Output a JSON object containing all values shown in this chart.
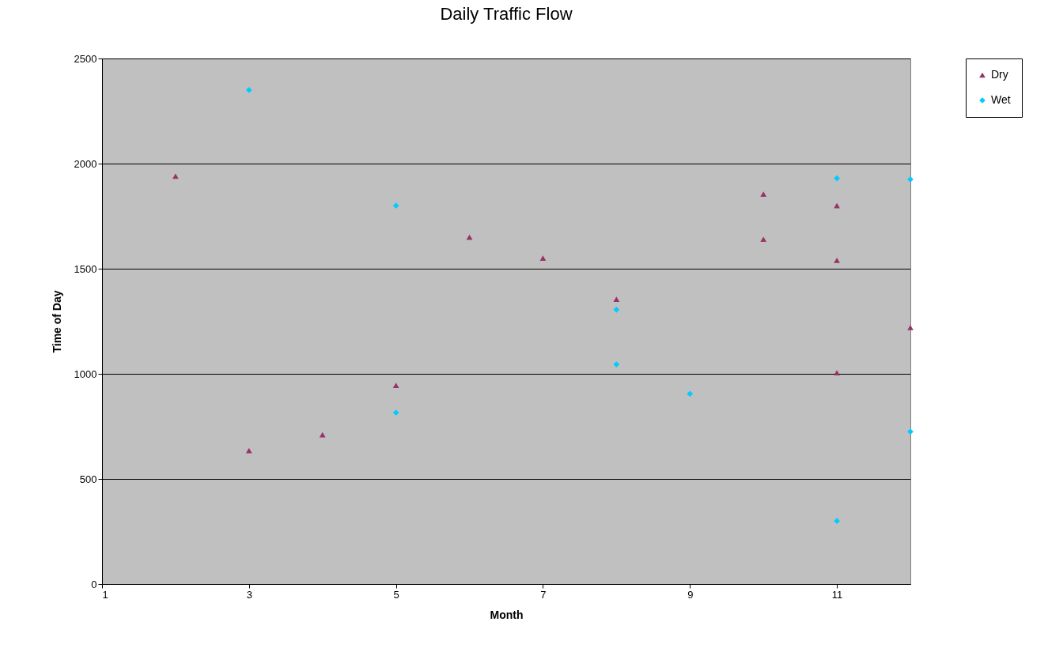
{
  "chart_data": {
    "type": "scatter",
    "title": "Daily Traffic Flow",
    "xlabel": "Month",
    "ylabel": "Time of Day",
    "xlim": [
      1,
      12
    ],
    "xticks": [
      1,
      3,
      5,
      7,
      9,
      11
    ],
    "ylim": [
      0,
      2500
    ],
    "yticks": [
      0,
      500,
      1000,
      1500,
      2000,
      2500
    ],
    "grid": "y",
    "legend": "right",
    "series": [
      {
        "name": "Dry",
        "color": "#993366",
        "marker": "triangle",
        "x": [
          2,
          3,
          4,
          5,
          6,
          7,
          8,
          10,
          10,
          11,
          11,
          11,
          12
        ],
        "values": [
          1940,
          635,
          710,
          945,
          1650,
          1550,
          1355,
          1855,
          1640,
          1800,
          1540,
          1005,
          1220
        ]
      },
      {
        "name": "Wet",
        "color": "#00ccff",
        "marker": "diamond",
        "x": [
          3,
          5,
          5,
          8,
          8,
          9,
          11,
          11,
          12,
          12
        ],
        "values": [
          2350,
          1800,
          815,
          1305,
          1045,
          905,
          1930,
          300,
          1925,
          725
        ]
      }
    ]
  }
}
